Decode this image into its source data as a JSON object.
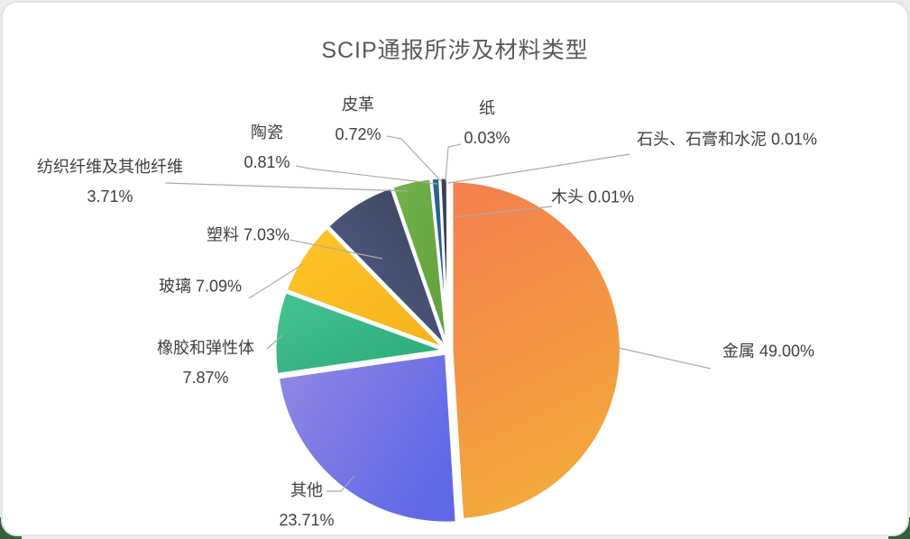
{
  "title": "SCIP通报所涉及材料类型",
  "chart_data": {
    "type": "pie",
    "title": "SCIP通报所涉及材料类型",
    "start_angle_deg": 0,
    "direction": "clockwise",
    "legend": "none",
    "style": "exploded slices with white gaps, per-slice gradient fill, gray leader lines to labels",
    "slices": [
      {
        "id": "metal",
        "name": "金属",
        "value": 49.0,
        "pct": "49.00%",
        "color_start": "#F4804E",
        "color_end": "#F3A93B"
      },
      {
        "id": "other",
        "name": "其他",
        "value": 23.71,
        "pct": "23.71%",
        "color_start": "#9488E4",
        "color_end": "#6068E6"
      },
      {
        "id": "rubber",
        "name": "橡胶和弹性体",
        "value": 7.87,
        "pct": "7.87%",
        "color_start": "#45C493",
        "color_end": "#2BA878"
      },
      {
        "id": "glass",
        "name": "玻璃",
        "value": 7.09,
        "pct": "7.09%",
        "color_start": "#FFC527",
        "color_end": "#F5B41C"
      },
      {
        "id": "plastic",
        "name": "塑料",
        "value": 7.03,
        "pct": "7.03%",
        "color_start": "#3A4459",
        "color_end": "#545F8C"
      },
      {
        "id": "textile",
        "name": "纺织纤维及其他纤维",
        "value": 3.71,
        "pct": "3.71%",
        "color_start": "#72B24A",
        "color_end": "#619F3D"
      },
      {
        "id": "ceramic",
        "name": "陶瓷",
        "value": 0.81,
        "pct": "0.81%",
        "color_start": "#2E6493",
        "color_end": "#275A88"
      },
      {
        "id": "leather",
        "name": "皮革",
        "value": 0.72,
        "pct": "0.72%",
        "color_start": "#39415A",
        "color_end": "#2C364B"
      },
      {
        "id": "paper",
        "name": "纸",
        "value": 0.03,
        "pct": "0.03%",
        "color_start": "#203245",
        "color_end": "#203245"
      },
      {
        "id": "stone",
        "name": "石头、石膏和水泥",
        "value": 0.01,
        "pct": "0.01%",
        "color_start": "#8A8F98",
        "color_end": "#8A8F98"
      },
      {
        "id": "wood",
        "name": "木头",
        "value": 0.01,
        "pct": "0.01%",
        "color_start": "#B89A6A",
        "color_end": "#B89A6A"
      }
    ]
  },
  "colors": {
    "title_text": "#595959",
    "label_text": "#3F3F3F",
    "leader_line": "#ABABAB",
    "card_background": "#FFFFFF",
    "card_border": "#E2E4E1",
    "page_background": "#ECEDEA",
    "corner_accent": "#35603C",
    "slice_gap": "#FFFFFF"
  }
}
